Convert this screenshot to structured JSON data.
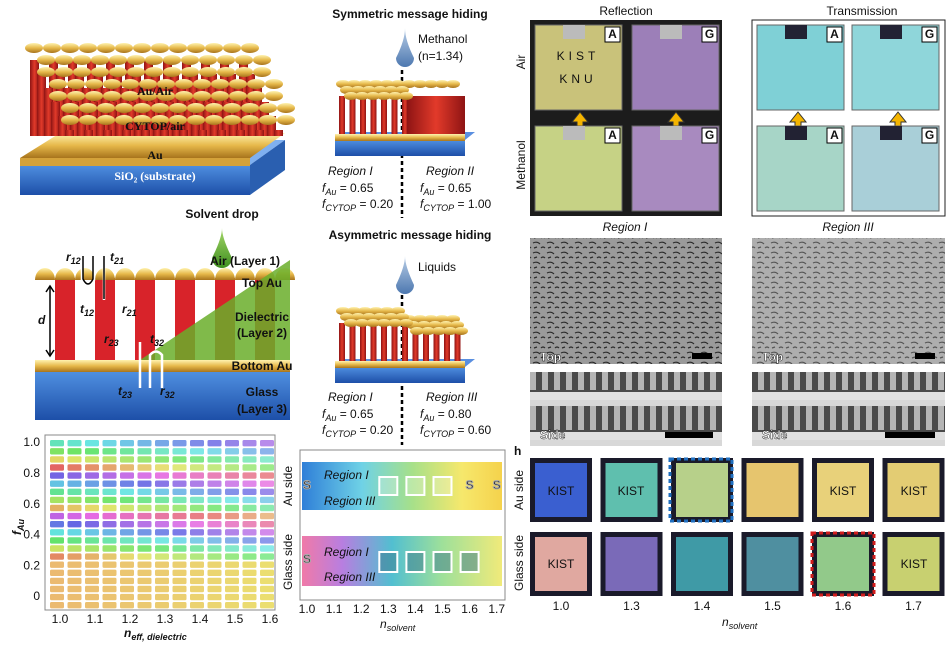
{
  "panel_a": {
    "labels": [
      "Au/Air",
      "CYTOP/air",
      "Au",
      "SiO₂ (substrate)"
    ]
  },
  "panel_b": {
    "solvent": "Solvent drop",
    "layers": [
      "Air (Layer 1)",
      "Top Au",
      "Dielectric",
      "(Layer 2)",
      "Bottom Au",
      "Glass",
      "(Layer 3)"
    ],
    "thickness": "d",
    "coefficients": [
      {
        "sym": "r",
        "sub": "12"
      },
      {
        "sym": "t",
        "sub": "21"
      },
      {
        "sym": "t",
        "sub": "12"
      },
      {
        "sym": "r",
        "sub": "21"
      },
      {
        "sym": "r",
        "sub": "23"
      },
      {
        "sym": "t",
        "sub": "32"
      },
      {
        "sym": "t",
        "sub": "23"
      },
      {
        "sym": "r",
        "sub": "32"
      }
    ]
  },
  "heatmap": {
    "y_label": {
      "sym": "f",
      "sub": "Au"
    },
    "x_label": {
      "sym": "n",
      "sub": "eff, dielectric"
    },
    "y_ticks": [
      "1.0",
      "0.8",
      "0.6",
      "0.4",
      "0.2",
      "0"
    ],
    "x_ticks": [
      "1.0",
      "1.1",
      "1.2",
      "1.3",
      "1.4",
      "1.5",
      "1.6"
    ]
  },
  "symmetric": {
    "title": "Symmetric message hiding",
    "liquid": "Methanol",
    "index": "(n=1.34)",
    "regions": [
      {
        "name": "Region I",
        "lines": [
          {
            "sym": "f",
            "sub": "Au",
            "eq": " = 0.65"
          },
          {
            "sym": "f",
            "sub": "CYTOP",
            "eq": " = 0.20"
          }
        ]
      },
      {
        "name": "Region II",
        "lines": [
          {
            "sym": "f",
            "sub": "Au",
            "eq": " = 0.65"
          },
          {
            "sym": "f",
            "sub": "CYTOP",
            "eq": " = 1.00"
          }
        ]
      }
    ]
  },
  "asymmetric": {
    "title": "Asymmetric message hiding",
    "liquid": "Liquids",
    "regions": [
      {
        "name": "Region I",
        "lines": [
          {
            "sym": "f",
            "sub": "Au",
            "eq": " = 0.65"
          },
          {
            "sym": "f",
            "sub": "CYTOP",
            "eq": " = 0.20"
          }
        ]
      },
      {
        "name": "Region III",
        "lines": [
          {
            "sym": "f",
            "sub": "Au",
            "eq": " = 0.80"
          },
          {
            "sym": "f",
            "sub": "CYTOP",
            "eq": " = 0.60"
          }
        ]
      }
    ]
  },
  "solvent_chart": {
    "rows": [
      "Au side",
      "Glass side"
    ],
    "au_regions": [
      "Region I",
      "Region III"
    ],
    "glass_regions": [
      "Region I",
      "Region III"
    ],
    "letters": [
      "S",
      "S",
      "S",
      "S"
    ],
    "x_ticks": [
      "1.0",
      "1.1",
      "1.2",
      "1.3",
      "1.4",
      "1.5",
      "1.6",
      "1.7"
    ],
    "x_label": {
      "sym": "n",
      "sub": "solvent"
    }
  },
  "photos": {
    "columns": [
      "Reflection",
      "Transmission"
    ],
    "rows": [
      "Air",
      "Methanol"
    ],
    "tags": [
      "A",
      "G",
      "A",
      "G",
      "A",
      "G",
      "A",
      "G"
    ],
    "message": [
      "KIST",
      "KNU"
    ]
  },
  "sem": {
    "regions": [
      "Region I",
      "Region III"
    ],
    "views": [
      "Top",
      "Side",
      "Top",
      "Side"
    ]
  },
  "panel_h": {
    "letter": "h",
    "rows": [
      "Au side",
      "Glass side"
    ],
    "message": "KIST",
    "x_ticks": [
      "1.0",
      "1.3",
      "1.4",
      "1.5",
      "1.6",
      "1.7"
    ],
    "x_label": {
      "sym": "n",
      "sub": "solvent"
    }
  }
}
